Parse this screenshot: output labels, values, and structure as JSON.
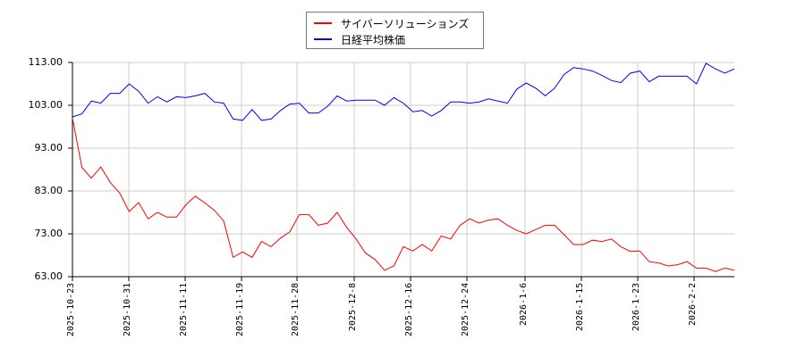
{
  "chart_data": {
    "type": "line",
    "title": "",
    "xlabel": "",
    "ylabel": "",
    "ylim": [
      63,
      113
    ],
    "grid": true,
    "legend_position": "top-center",
    "yticks": [
      "113.00",
      "103.00",
      "93.00",
      "83.00",
      "73.00",
      "63.00"
    ],
    "xticks": [
      "2025-10-23",
      "2025-10-31",
      "2025-11-11",
      "2025-11-19",
      "2025-11-28",
      "2025-12-8",
      "2025-12-16",
      "2025-12-24",
      "2026-1-6",
      "2026-1-15",
      "2026-1-23",
      "2026-2-2"
    ],
    "series": [
      {
        "name": "サイバーソリューションズ",
        "color": "#ff0000",
        "values": [
          100.0,
          88.5,
          86.0,
          88.6,
          85.0,
          82.5,
          78.2,
          80.3,
          76.5,
          78.0,
          76.9,
          76.9,
          79.8,
          81.8,
          80.2,
          78.5,
          76.0,
          67.5,
          68.8,
          67.5,
          71.2,
          70.0,
          72.0,
          73.5,
          77.5,
          77.5,
          75.0,
          75.5,
          78.0,
          74.5,
          71.8,
          68.5,
          67.0,
          64.5,
          65.5,
          70.0,
          69.0,
          70.5,
          69.0,
          72.5,
          71.8,
          75.0,
          76.5,
          75.5,
          76.2,
          76.5,
          75.0,
          73.8,
          73.0,
          74.0,
          75.0,
          75.0,
          72.8,
          70.5,
          70.5,
          71.5,
          71.2,
          71.8,
          70.0,
          68.9,
          69.0,
          66.5,
          66.2,
          65.5,
          65.8,
          66.5,
          65.0,
          65.0,
          64.2,
          65.0,
          64.5
        ]
      },
      {
        "name": "日経平均株価",
        "color": "#0000ff",
        "values": [
          100.3,
          101.0,
          104.0,
          103.5,
          105.8,
          105.8,
          108.0,
          106.3,
          103.5,
          105.0,
          103.8,
          105.0,
          104.8,
          105.2,
          105.8,
          103.8,
          103.5,
          99.8,
          99.5,
          102.0,
          99.5,
          99.8,
          101.8,
          103.3,
          103.5,
          101.2,
          101.2,
          102.8,
          105.2,
          104.0,
          104.2,
          104.2,
          104.2,
          103.0,
          104.8,
          103.5,
          101.5,
          101.8,
          100.5,
          101.8,
          103.8,
          103.8,
          103.5,
          103.8,
          104.5,
          104.0,
          103.5,
          106.8,
          108.2,
          107.0,
          105.2,
          107.0,
          110.2,
          111.8,
          111.5,
          111.0,
          110.0,
          108.8,
          108.3,
          110.5,
          111.0,
          108.5,
          109.8,
          109.8,
          109.8,
          109.8,
          108.0,
          112.8,
          111.5,
          110.5,
          111.5
        ]
      }
    ]
  },
  "legend": {
    "items": [
      {
        "label": "サイバーソリューションズ",
        "color": "#ff0000"
      },
      {
        "label": "日経平均株価",
        "color": "#0000ff"
      }
    ]
  }
}
